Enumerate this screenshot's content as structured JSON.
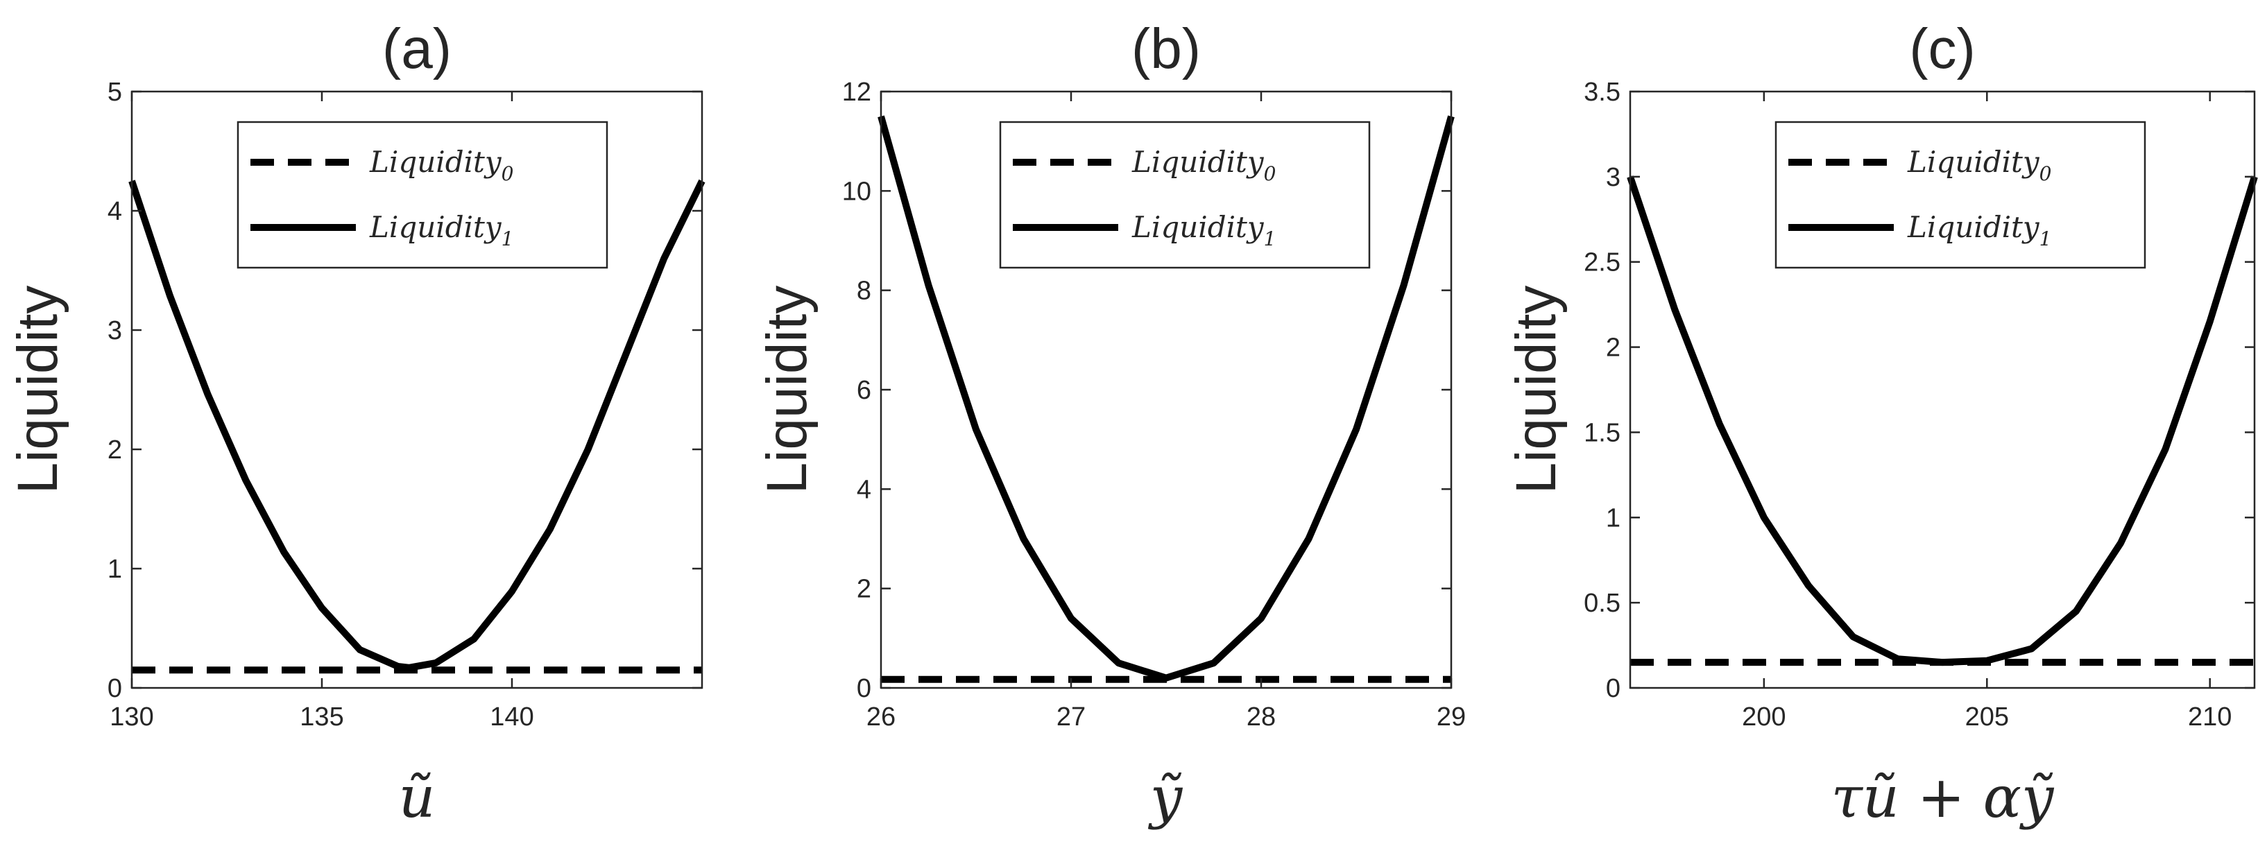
{
  "chart_data": [
    {
      "type": "line",
      "title": "(a)",
      "xlabel": "ũ",
      "ylabel": "Liquidity",
      "xlim": [
        130,
        145
      ],
      "ylim": [
        0,
        5
      ],
      "xticks": [
        "130",
        "135",
        "140"
      ],
      "yticks": [
        "0",
        "1",
        "2",
        "3",
        "4",
        "5"
      ],
      "legend_position": "top-center",
      "series": [
        {
          "name": "Liquidity",
          "subscript": "0",
          "style": "dashed",
          "x": [
            130,
            145
          ],
          "y": [
            0.15,
            0.15
          ]
        },
        {
          "name": "Liquidity",
          "subscript": "1",
          "style": "solid",
          "x": [
            130,
            131,
            132,
            133,
            134,
            135,
            136,
            137,
            137.3,
            138,
            139,
            140,
            141,
            142,
            143,
            144,
            145
          ],
          "y": [
            4.25,
            3.29,
            2.46,
            1.74,
            1.14,
            0.67,
            0.32,
            0.18,
            0.17,
            0.21,
            0.41,
            0.81,
            1.33,
            2.0,
            2.8,
            3.6,
            4.25
          ]
        }
      ]
    },
    {
      "type": "line",
      "title": "(b)",
      "xlabel": "ỹ",
      "ylabel": "Liquidity",
      "xlim": [
        26,
        29
      ],
      "ylim": [
        0,
        12
      ],
      "xticks": [
        "26",
        "27",
        "28",
        "29"
      ],
      "yticks": [
        "0",
        "2",
        "4",
        "6",
        "8",
        "10",
        "12"
      ],
      "legend_position": "top-center",
      "series": [
        {
          "name": "Liquidity",
          "subscript": "0",
          "style": "dashed",
          "x": [
            26,
            29
          ],
          "y": [
            0.17,
            0.17
          ]
        },
        {
          "name": "Liquidity",
          "subscript": "1",
          "style": "solid",
          "x": [
            26,
            26.25,
            26.5,
            26.75,
            27,
            27.25,
            27.5,
            27.75,
            28,
            28.25,
            28.5,
            28.75,
            29
          ],
          "y": [
            11.5,
            8.1,
            5.2,
            3.0,
            1.4,
            0.5,
            0.2,
            0.5,
            1.4,
            3.0,
            5.2,
            8.1,
            11.5
          ]
        }
      ]
    },
    {
      "type": "line",
      "title": "(c)",
      "xlabel": "τũ + αỹ",
      "ylabel": "Liquidity",
      "xlim": [
        197,
        211
      ],
      "ylim": [
        0,
        3.5
      ],
      "xticks": [
        "200",
        "205",
        "210"
      ],
      "yticks": [
        "0",
        "0.5",
        "1",
        "1.5",
        "2",
        "2.5",
        "3",
        "3.5"
      ],
      "legend_position": "top-center",
      "series": [
        {
          "name": "Liquidity",
          "subscript": "0",
          "style": "dashed",
          "x": [
            197,
            211
          ],
          "y": [
            0.15,
            0.15
          ]
        },
        {
          "name": "Liquidity",
          "subscript": "1",
          "style": "solid",
          "x": [
            197,
            198,
            199,
            200,
            201,
            202,
            203,
            204,
            205,
            206,
            207,
            208,
            209,
            210,
            211
          ],
          "y": [
            3.0,
            2.22,
            1.55,
            1.0,
            0.6,
            0.3,
            0.17,
            0.15,
            0.16,
            0.23,
            0.45,
            0.85,
            1.4,
            2.15,
            3.0
          ]
        }
      ]
    }
  ]
}
